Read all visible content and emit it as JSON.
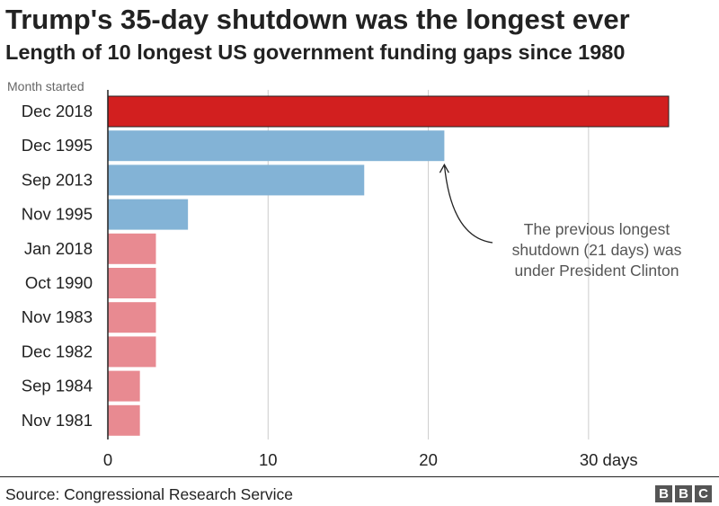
{
  "title": "Trump's 35-day shutdown was the longest ever",
  "subtitle": "Length of 10 longest US government funding gaps since 1980",
  "source": "Source: Congressional Research Service",
  "logo_letters": [
    "B",
    "B",
    "C"
  ],
  "chart_data": {
    "type": "bar",
    "orientation": "horizontal",
    "y_axis_title": "Month started",
    "categories": [
      "Dec 2018",
      "Dec 1995",
      "Sep 2013",
      "Nov 1995",
      "Jan 2018",
      "Oct 1990",
      "Nov 1983",
      "Dec 1982",
      "Sep 1984",
      "Nov 1981"
    ],
    "values": [
      35,
      21,
      16,
      5,
      3,
      3,
      3,
      3,
      2,
      2
    ],
    "bar_colors": [
      "#d21f1f",
      "#83b3d6",
      "#83b3d6",
      "#83b3d6",
      "#e88a91",
      "#e88a91",
      "#e88a91",
      "#e88a91",
      "#e88a91",
      "#e88a91"
    ],
    "xlim": [
      0,
      35
    ],
    "x_ticks": [
      0,
      10,
      20,
      30
    ],
    "x_tick_labels": [
      "0",
      "10",
      "20",
      "30 days"
    ],
    "grid": true,
    "annotation": {
      "lines": [
        "The previous longest",
        "shutdown (21 days) was",
        "under President Clinton"
      ],
      "target_category": "Dec 1995",
      "target_value": 21
    }
  }
}
